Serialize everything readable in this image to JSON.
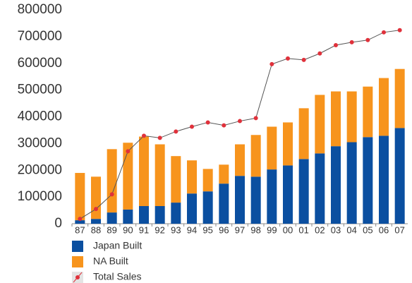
{
  "chart_data": {
    "type": "bar",
    "stacked": true,
    "categories": [
      "87",
      "88",
      "89",
      "90",
      "91",
      "92",
      "93",
      "94",
      "95",
      "96",
      "97",
      "98",
      "99",
      "00",
      "01",
      "02",
      "03",
      "04",
      "05",
      "06",
      "07"
    ],
    "series": [
      {
        "name": "Japan Built",
        "color": "#0b4fa0",
        "values": [
          13000,
          18000,
          42000,
          53000,
          66000,
          66000,
          79000,
          113000,
          121000,
          150000,
          179000,
          176000,
          203000,
          218000,
          242000,
          263000,
          290000,
          305000,
          324000,
          329000,
          358000
        ]
      },
      {
        "name": "NA Built",
        "color": "#f7941d",
        "values": [
          177000,
          158000,
          237000,
          250000,
          260000,
          231000,
          174000,
          124000,
          84000,
          71000,
          118000,
          156000,
          160000,
          161000,
          190000,
          219000,
          205000,
          190000,
          189000,
          216000,
          221000
        ]
      },
      {
        "name": "Total Sales",
        "type": "line",
        "color": "#555555",
        "marker_color": "#e0313b",
        "values": [
          18000,
          55000,
          110000,
          271000,
          329000,
          321000,
          345000,
          363000,
          379000,
          368000,
          384000,
          395000,
          597000,
          618000,
          613000,
          637000,
          668000,
          679000,
          687000,
          716000,
          724000
        ]
      }
    ],
    "ylim": [
      0,
      800000
    ],
    "yticks": [
      0,
      100000,
      200000,
      300000,
      400000,
      500000,
      600000,
      700000,
      800000
    ],
    "grid": false
  }
}
